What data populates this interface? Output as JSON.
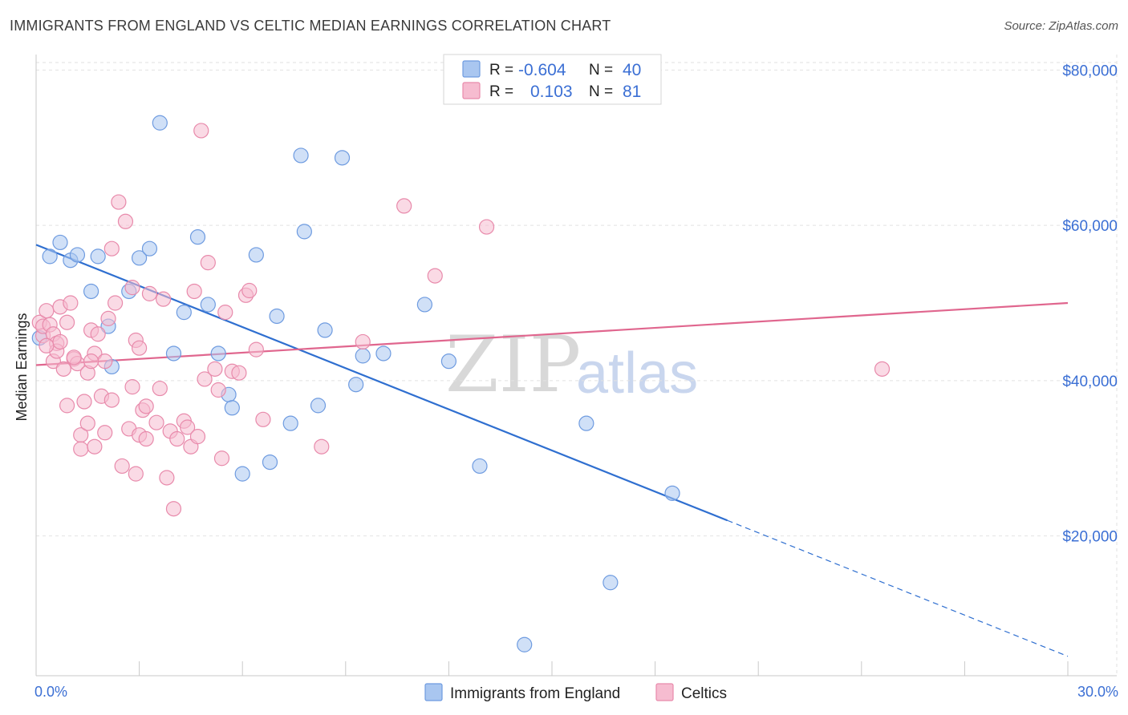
{
  "title": "IMMIGRANTS FROM ENGLAND VS CELTIC MEDIAN EARNINGS CORRELATION CHART",
  "source": "Source: ZipAtlas.com",
  "watermark": {
    "zip": "ZIP",
    "atlas": "atlas"
  },
  "legend_top": [
    {
      "r_label": "R =",
      "r_value": "-0.604",
      "n_label": "N =",
      "n_value": "40",
      "color": "#a9c6f0",
      "stroke": "#6e9be0"
    },
    {
      "r_label": "R =",
      "r_value": "0.103",
      "n_label": "N =",
      "n_value": "81",
      "color": "#f6bcd0",
      "stroke": "#e88aab"
    }
  ],
  "legend_bottom": [
    {
      "label": "Immigrants from England",
      "color": "#a9c6f0",
      "stroke": "#6e9be0"
    },
    {
      "label": "Celtics",
      "color": "#f6bcd0",
      "stroke": "#e88aab"
    }
  ],
  "chart_data": {
    "type": "scatter",
    "ylabel": "Median Earnings",
    "xlabel": "",
    "xlim": [
      0,
      30
    ],
    "ylim": [
      2000,
      82000
    ],
    "x_tick_labels": [
      "0.0%",
      "30.0%"
    ],
    "y_ticks": [
      20000,
      40000,
      60000,
      80000
    ],
    "y_tick_labels": [
      "$20,000",
      "$40,000",
      "$60,000",
      "$80,000"
    ],
    "grid": true,
    "series": [
      {
        "name": "Immigrants from England",
        "color": "#6e9be0",
        "fill": "#a9c6f0",
        "trend": {
          "x0": 0,
          "y0": 57500,
          "x1": 20.1,
          "y1": 22000,
          "dash_x1": 30,
          "dash_y1": 4500,
          "color": "#2f6fd0"
        },
        "points": [
          [
            0.4,
            56000
          ],
          [
            0.7,
            57800
          ],
          [
            1.0,
            55500
          ],
          [
            1.2,
            56200
          ],
          [
            1.6,
            51500
          ],
          [
            1.8,
            56000
          ],
          [
            2.1,
            47000
          ],
          [
            2.2,
            41800
          ],
          [
            2.7,
            51500
          ],
          [
            3.0,
            55800
          ],
          [
            3.3,
            57000
          ],
          [
            3.6,
            73200
          ],
          [
            4.0,
            43500
          ],
          [
            4.3,
            48800
          ],
          [
            4.7,
            58500
          ],
          [
            5.0,
            49800
          ],
          [
            5.3,
            43500
          ],
          [
            5.6,
            38200
          ],
          [
            5.7,
            36500
          ],
          [
            6.0,
            28000
          ],
          [
            6.4,
            56200
          ],
          [
            6.8,
            29500
          ],
          [
            7.0,
            48300
          ],
          [
            7.4,
            34500
          ],
          [
            7.7,
            69000
          ],
          [
            7.8,
            59200
          ],
          [
            8.2,
            36800
          ],
          [
            8.4,
            46500
          ],
          [
            8.9,
            68700
          ],
          [
            9.3,
            39500
          ],
          [
            9.5,
            43200
          ],
          [
            10.1,
            43500
          ],
          [
            11.3,
            49800
          ],
          [
            12.0,
            42500
          ],
          [
            12.9,
            29000
          ],
          [
            14.2,
            6000
          ],
          [
            16.0,
            34500
          ],
          [
            16.7,
            14000
          ],
          [
            18.5,
            25500
          ],
          [
            0.1,
            45500
          ]
        ]
      },
      {
        "name": "Celtics",
        "color": "#e88aab",
        "fill": "#f6bcd0",
        "trend": {
          "x0": 0,
          "y0": 42000,
          "x1": 30,
          "y1": 50000,
          "color": "#e0668e"
        },
        "points": [
          [
            0.1,
            47500
          ],
          [
            0.2,
            45800
          ],
          [
            0.2,
            47000
          ],
          [
            0.3,
            49000
          ],
          [
            0.4,
            47200
          ],
          [
            0.5,
            46000
          ],
          [
            0.5,
            42500
          ],
          [
            0.6,
            44800
          ],
          [
            0.6,
            43800
          ],
          [
            0.7,
            49500
          ],
          [
            0.8,
            41500
          ],
          [
            0.9,
            36800
          ],
          [
            0.9,
            47500
          ],
          [
            1.0,
            50000
          ],
          [
            1.1,
            42800
          ],
          [
            1.2,
            42200
          ],
          [
            1.3,
            33000
          ],
          [
            1.3,
            31200
          ],
          [
            1.4,
            37300
          ],
          [
            1.5,
            34500
          ],
          [
            1.5,
            41000
          ],
          [
            1.6,
            46500
          ],
          [
            1.7,
            31500
          ],
          [
            1.7,
            43500
          ],
          [
            1.8,
            46000
          ],
          [
            1.9,
            38000
          ],
          [
            2.0,
            33300
          ],
          [
            2.0,
            42500
          ],
          [
            2.1,
            48000
          ],
          [
            2.2,
            37500
          ],
          [
            2.2,
            57000
          ],
          [
            2.3,
            50000
          ],
          [
            2.4,
            63000
          ],
          [
            2.5,
            29000
          ],
          [
            2.6,
            60500
          ],
          [
            2.7,
            33800
          ],
          [
            2.8,
            52000
          ],
          [
            2.8,
            39200
          ],
          [
            2.9,
            28000
          ],
          [
            3.0,
            33000
          ],
          [
            3.1,
            36200
          ],
          [
            3.2,
            32500
          ],
          [
            3.2,
            36700
          ],
          [
            3.3,
            51200
          ],
          [
            3.5,
            34600
          ],
          [
            3.6,
            39000
          ],
          [
            3.7,
            50500
          ],
          [
            3.8,
            27500
          ],
          [
            3.9,
            33500
          ],
          [
            4.0,
            23500
          ],
          [
            4.1,
            32500
          ],
          [
            4.3,
            34800
          ],
          [
            4.4,
            34000
          ],
          [
            4.5,
            31500
          ],
          [
            4.6,
            51500
          ],
          [
            4.8,
            72200
          ],
          [
            4.9,
            40200
          ],
          [
            5.0,
            55200
          ],
          [
            5.2,
            41500
          ],
          [
            5.4,
            30000
          ],
          [
            5.5,
            48800
          ],
          [
            5.7,
            41200
          ],
          [
            5.9,
            41000
          ],
          [
            6.1,
            51000
          ],
          [
            6.2,
            51600
          ],
          [
            6.6,
            35000
          ],
          [
            8.3,
            31500
          ],
          [
            9.5,
            45000
          ],
          [
            10.7,
            62500
          ],
          [
            11.6,
            53500
          ],
          [
            13.1,
            59800
          ],
          [
            24.6,
            41500
          ],
          [
            1.1,
            43000
          ],
          [
            0.7,
            45000
          ],
          [
            1.6,
            42500
          ],
          [
            2.9,
            45200
          ],
          [
            4.7,
            32800
          ],
          [
            5.3,
            38800
          ],
          [
            3.0,
            44200
          ],
          [
            6.4,
            44000
          ],
          [
            0.3,
            44500
          ]
        ]
      }
    ]
  }
}
